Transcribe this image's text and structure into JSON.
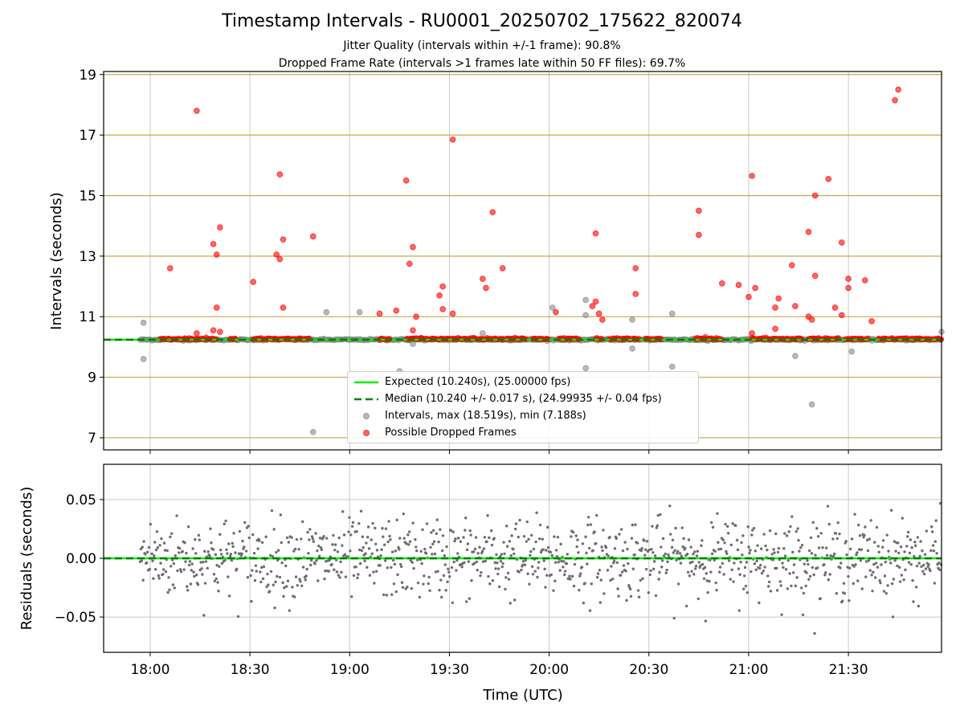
{
  "title": "Timestamp Intervals - RU0001_20250702_175622_820074",
  "subtitle_1": "Jitter Quality (intervals within +/-1 frame): 90.8%",
  "subtitle_2": "Dropped Frame Rate (intervals >1 frames late within 50 FF files): 69.7%",
  "colors": {
    "expected": "#00ee00",
    "median": "#007f00",
    "intervals": "#808080",
    "dropped": "#ff0000",
    "hgrid_top": "#c8a84a",
    "vgrid": "#c8c8c8"
  },
  "legend": {
    "expected": "Expected (10.240s), (25.00000 fps)",
    "median": "Median (10.240 +/- 0.017 s), (24.99935 +/- 0.04 fps)",
    "intervals": "Intervals, max (18.519s), min (7.188s)",
    "dropped": "Possible Dropped Frames"
  },
  "chart_data": [
    {
      "type": "scatter",
      "name": "intervals-panel",
      "ylabel": "Intervals (seconds)",
      "ylim": [
        6.6,
        19.1
      ],
      "yticks": [
        "7",
        "9",
        "11",
        "13",
        "15",
        "17",
        "19"
      ],
      "xlim": [
        "17:46",
        "21:58"
      ],
      "expected_value": 10.24,
      "median_value": 10.24,
      "grid": true,
      "legend_position": "bottom-center",
      "outliers_intervals": [
        {
          "t": "17:58",
          "y": 10.8
        },
        {
          "t": "17:58",
          "y": 9.6
        },
        {
          "t": "18:49",
          "y": 7.19
        },
        {
          "t": "18:53",
          "y": 11.15
        },
        {
          "t": "19:03",
          "y": 11.15
        },
        {
          "t": "19:15",
          "y": 9.2
        },
        {
          "t": "19:19",
          "y": 10.1
        },
        {
          "t": "19:40",
          "y": 10.45
        },
        {
          "t": "20:01",
          "y": 11.3
        },
        {
          "t": "20:11",
          "y": 11.55
        },
        {
          "t": "20:11",
          "y": 9.3
        },
        {
          "t": "20:11",
          "y": 11.05
        },
        {
          "t": "20:25",
          "y": 10.9
        },
        {
          "t": "20:25",
          "y": 9.95
        },
        {
          "t": "20:37",
          "y": 11.1
        },
        {
          "t": "20:37",
          "y": 9.35
        },
        {
          "t": "21:14",
          "y": 9.7
        },
        {
          "t": "21:19",
          "y": 8.1
        },
        {
          "t": "21:31",
          "y": 9.85
        },
        {
          "t": "21:58",
          "y": 10.5
        }
      ],
      "dropped_frames": [
        {
          "t": "18:06",
          "y": 12.6
        },
        {
          "t": "18:14",
          "y": 17.8
        },
        {
          "t": "18:14",
          "y": 10.45
        },
        {
          "t": "18:19",
          "y": 13.4
        },
        {
          "t": "18:20",
          "y": 13.05
        },
        {
          "t": "18:21",
          "y": 13.95
        },
        {
          "t": "18:20",
          "y": 11.3
        },
        {
          "t": "18:19",
          "y": 10.55
        },
        {
          "t": "18:21",
          "y": 10.5
        },
        {
          "t": "18:31",
          "y": 12.15
        },
        {
          "t": "18:38",
          "y": 13.05
        },
        {
          "t": "18:39",
          "y": 15.7
        },
        {
          "t": "18:40",
          "y": 13.55
        },
        {
          "t": "18:39",
          "y": 12.9
        },
        {
          "t": "18:40",
          "y": 11.3
        },
        {
          "t": "18:49",
          "y": 13.65
        },
        {
          "t": "19:09",
          "y": 11.1
        },
        {
          "t": "19:14",
          "y": 11.2
        },
        {
          "t": "19:17",
          "y": 15.5
        },
        {
          "t": "19:18",
          "y": 12.75
        },
        {
          "t": "19:19",
          "y": 13.3
        },
        {
          "t": "19:20",
          "y": 11.0
        },
        {
          "t": "19:19",
          "y": 10.55
        },
        {
          "t": "19:27",
          "y": 11.7
        },
        {
          "t": "19:28",
          "y": 12.0
        },
        {
          "t": "19:28",
          "y": 11.25
        },
        {
          "t": "19:31",
          "y": 16.85
        },
        {
          "t": "19:31",
          "y": 11.1
        },
        {
          "t": "19:40",
          "y": 12.25
        },
        {
          "t": "19:41",
          "y": 11.95
        },
        {
          "t": "19:43",
          "y": 14.45
        },
        {
          "t": "19:46",
          "y": 12.6
        },
        {
          "t": "20:02",
          "y": 11.15
        },
        {
          "t": "20:13",
          "y": 11.35
        },
        {
          "t": "20:14",
          "y": 13.75
        },
        {
          "t": "20:14",
          "y": 11.5
        },
        {
          "t": "20:15",
          "y": 11.1
        },
        {
          "t": "20:16",
          "y": 10.9
        },
        {
          "t": "20:26",
          "y": 12.6
        },
        {
          "t": "20:26",
          "y": 11.75
        },
        {
          "t": "20:45",
          "y": 14.5
        },
        {
          "t": "20:45",
          "y": 13.7
        },
        {
          "t": "20:52",
          "y": 12.1
        },
        {
          "t": "20:57",
          "y": 12.05
        },
        {
          "t": "21:00",
          "y": 11.65
        },
        {
          "t": "21:01",
          "y": 15.65
        },
        {
          "t": "21:02",
          "y": 11.95
        },
        {
          "t": "21:01",
          "y": 10.45
        },
        {
          "t": "21:08",
          "y": 11.3
        },
        {
          "t": "21:09",
          "y": 11.6
        },
        {
          "t": "21:08",
          "y": 10.6
        },
        {
          "t": "21:13",
          "y": 12.7
        },
        {
          "t": "21:14",
          "y": 11.35
        },
        {
          "t": "21:18",
          "y": 13.8
        },
        {
          "t": "21:18",
          "y": 11.0
        },
        {
          "t": "21:19",
          "y": 10.9
        },
        {
          "t": "21:20",
          "y": 12.35
        },
        {
          "t": "21:20",
          "y": 15.0
        },
        {
          "t": "21:24",
          "y": 15.55
        },
        {
          "t": "21:26",
          "y": 11.3
        },
        {
          "t": "21:28",
          "y": 13.45
        },
        {
          "t": "21:28",
          "y": 11.05
        },
        {
          "t": "21:30",
          "y": 12.25
        },
        {
          "t": "21:30",
          "y": 11.95
        },
        {
          "t": "21:35",
          "y": 12.2
        },
        {
          "t": "21:37",
          "y": 10.85
        },
        {
          "t": "21:44",
          "y": 18.15
        },
        {
          "t": "21:45",
          "y": 18.5
        }
      ],
      "baseline_range": [
        "17:57",
        "21:58"
      ],
      "dropped_runs": [
        [
          "18:03",
          "18:20"
        ],
        [
          "18:24",
          "18:26"
        ],
        [
          "18:31",
          "18:48"
        ],
        [
          "19:09",
          "19:12"
        ],
        [
          "19:17",
          "19:53"
        ],
        [
          "19:55",
          "20:00"
        ],
        [
          "20:03",
          "20:09"
        ],
        [
          "20:14",
          "20:16"
        ],
        [
          "20:18",
          "20:27"
        ],
        [
          "20:29",
          "20:34"
        ],
        [
          "20:44",
          "20:52"
        ],
        [
          "21:01",
          "21:16"
        ],
        [
          "21:18",
          "21:27"
        ],
        [
          "21:29",
          "21:36"
        ],
        [
          "21:39",
          "21:58"
        ]
      ]
    },
    {
      "type": "scatter",
      "name": "residuals-panel",
      "xlabel": "Time (UTC)",
      "ylabel": "Residuals (seconds)",
      "ylim": [
        -0.08,
        0.08
      ],
      "yticks": [
        "−0.05",
        "0.00",
        "0.05"
      ],
      "xticks": [
        "18:00",
        "18:30",
        "19:00",
        "19:30",
        "20:00",
        "20:30",
        "21:00",
        "21:30"
      ],
      "xlim": [
        "17:46",
        "21:58"
      ],
      "residual_spread_std": 0.017,
      "residual_time_range": [
        "17:57",
        "21:58"
      ],
      "grid": true
    }
  ]
}
